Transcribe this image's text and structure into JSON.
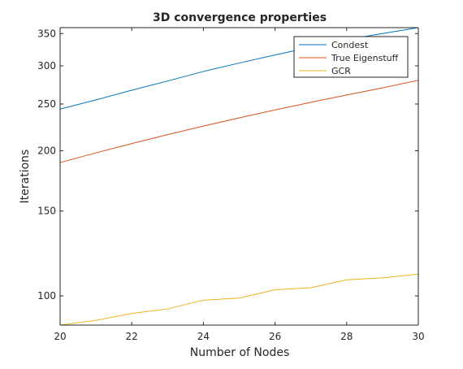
{
  "chart_data": {
    "type": "line",
    "title": "3D convergence properties",
    "xlabel": "Number of Nodes",
    "ylabel": "Iterations",
    "xlim": [
      20,
      30
    ],
    "ylim": [
      87,
      360
    ],
    "yscale": "log",
    "grid": false,
    "legend_position": "top-right",
    "x_ticks": [
      20,
      22,
      24,
      26,
      28,
      30
    ],
    "y_ticks": [
      100,
      150,
      200,
      250,
      300,
      350
    ],
    "x": [
      20,
      21,
      22,
      23,
      24,
      25,
      26,
      27,
      28,
      29,
      30
    ],
    "series": [
      {
        "name": "Condest",
        "color": "#0072BD",
        "values": [
          244,
          255,
          267,
          279,
          292,
          304,
          316,
          328,
          340,
          350,
          360
        ]
      },
      {
        "name": "True Eigenstuff",
        "color": "#D95319",
        "values": [
          189,
          198,
          207,
          216,
          225,
          234,
          243,
          252,
          261,
          270,
          280
        ]
      },
      {
        "name": "GCR",
        "color": "#EDB120",
        "values": [
          87,
          89,
          92,
          94,
          98,
          99,
          103,
          104,
          108,
          109,
          111
        ]
      }
    ]
  }
}
